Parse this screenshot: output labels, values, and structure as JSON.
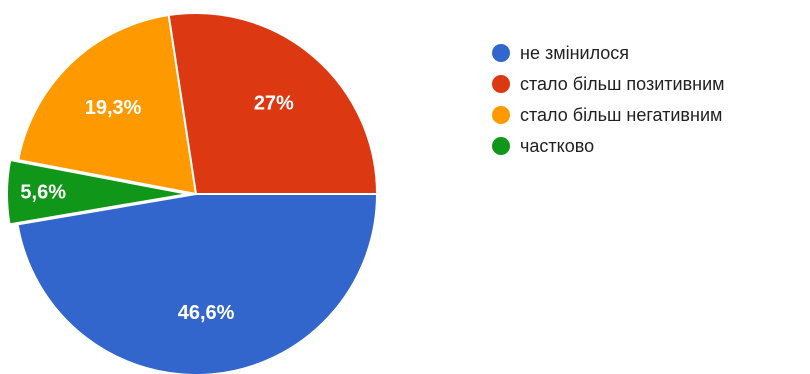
{
  "chart_data": {
    "type": "pie",
    "title": "",
    "legend_position": "right",
    "exploded_slice": "частково",
    "slices": [
      {
        "label": "не змінилося",
        "value": 46.6,
        "display": "46,6%",
        "color": "#3366cc"
      },
      {
        "label": "стало більш позитивним",
        "value": 27.0,
        "display": "27%",
        "color": "#dc3912"
      },
      {
        "label": "стало більш негативним",
        "value": 19.3,
        "display": "19,3%",
        "color": "#ff9900"
      },
      {
        "label": "частково",
        "value": 5.6,
        "display": "5,6%",
        "color": "#109618"
      }
    ]
  }
}
